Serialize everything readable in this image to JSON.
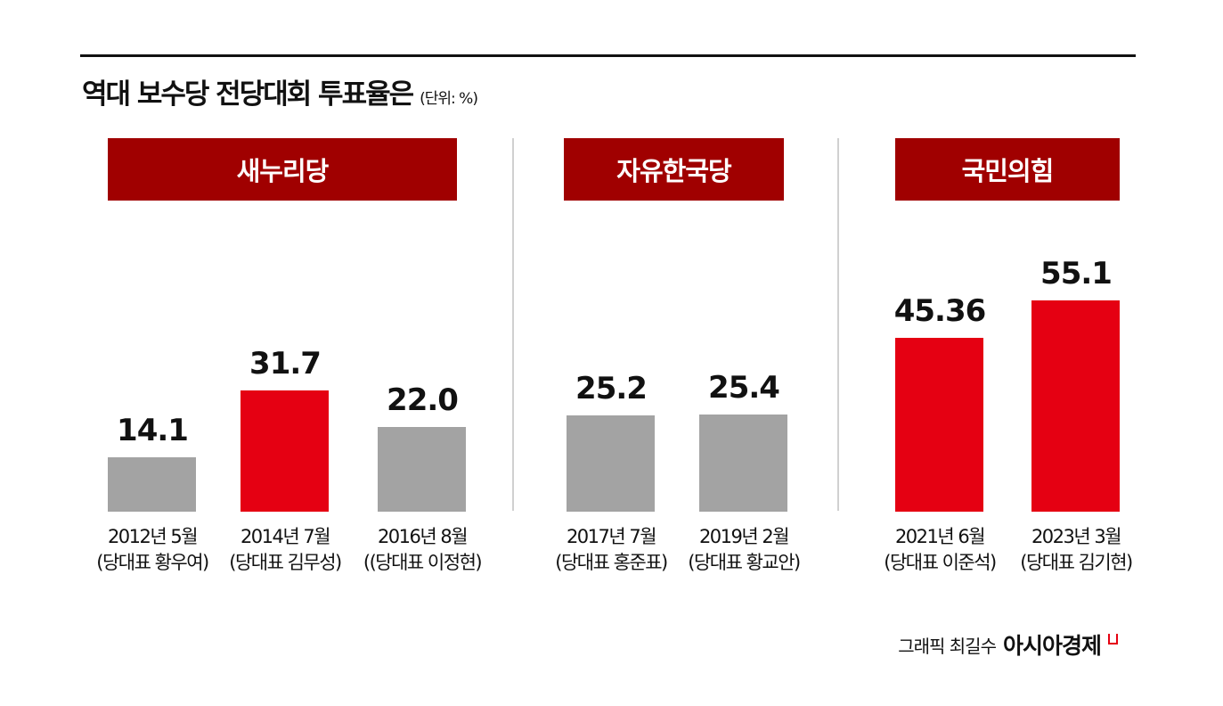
{
  "chart_data": {
    "type": "bar",
    "title": "역대 보수당 전당대회 투표율은",
    "unit": "(단위: %)",
    "groups": [
      {
        "name": "새누리당",
        "bars": [
          {
            "label": "2012년 5월",
            "sub": "(당대표 황우여)",
            "value": 14.1,
            "display": "14.1",
            "highlight": false
          },
          {
            "label": "2014년 7월",
            "sub": "(당대표 김무성)",
            "value": 31.7,
            "display": "31.7",
            "highlight": true
          },
          {
            "label": "2016년 8월",
            "sub": "((당대표 이정현)",
            "value": 22.0,
            "display": "22.0",
            "highlight": false
          }
        ]
      },
      {
        "name": "자유한국당",
        "bars": [
          {
            "label": "2017년 7월",
            "sub": "(당대표 홍준표)",
            "value": 25.2,
            "display": "25.2",
            "highlight": false
          },
          {
            "label": "2019년 2월",
            "sub": "(당대표 황교안)",
            "value": 25.4,
            "display": "25.4",
            "highlight": false
          }
        ]
      },
      {
        "name": "국민의힘",
        "bars": [
          {
            "label": "2021년 6월",
            "sub": "(당대표 이준석)",
            "value": 45.36,
            "display": "45.36",
            "highlight": true
          },
          {
            "label": "2023년 3월",
            "sub": "(당대표 김기현)",
            "value": 55.1,
            "display": "55.1",
            "highlight": true
          }
        ]
      }
    ],
    "colors": {
      "highlight": "#e50012",
      "normal": "#a3a3a3",
      "header": "#a00000"
    }
  },
  "credit": {
    "text": "그래픽 최길수",
    "brand": "아시아경제"
  }
}
